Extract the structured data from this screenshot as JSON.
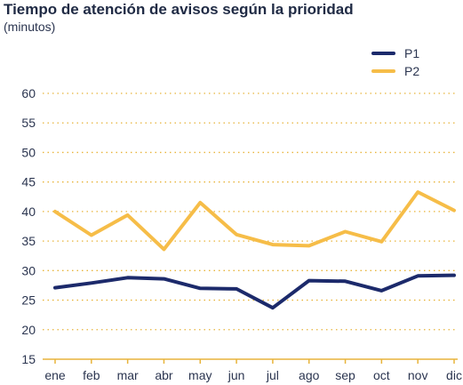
{
  "chart_data": {
    "type": "line",
    "title": "Tiempo de atención de avisos según la prioridad",
    "subtitle": "(minutos)",
    "categories": [
      "ene",
      "feb",
      "mar",
      "abr",
      "may",
      "jun",
      "jul",
      "ago",
      "sep",
      "oct",
      "nov",
      "dic"
    ],
    "series": [
      {
        "name": "P1",
        "color": "#1c2a6b",
        "values": [
          27.1,
          27.9,
          28.8,
          28.6,
          27.0,
          26.9,
          23.7,
          28.3,
          28.2,
          26.6,
          29.1,
          29.2
        ]
      },
      {
        "name": "P2",
        "color": "#f6bd48",
        "values": [
          40.0,
          36.0,
          39.4,
          33.6,
          41.5,
          36.1,
          34.4,
          34.2,
          36.6,
          34.9,
          43.3,
          40.2
        ]
      }
    ],
    "ylim": [
      15,
      60
    ],
    "yticks": [
      15,
      20,
      25,
      30,
      35,
      40,
      45,
      50,
      55,
      60
    ],
    "grid": true,
    "legend_position": "top-right",
    "grid_color": "#e8b43b"
  }
}
